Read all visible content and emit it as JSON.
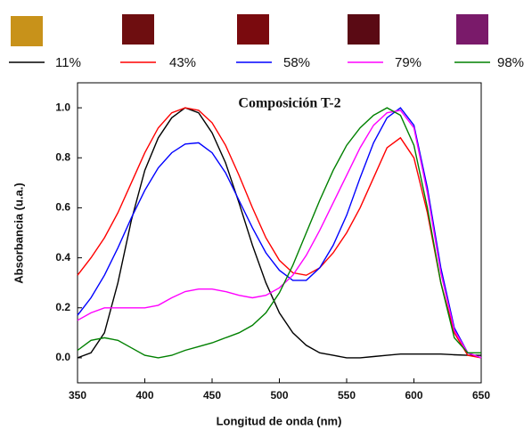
{
  "chart_data": {
    "type": "line",
    "title": "Composición T-2",
    "x_label": "Longitud de onda (nm)",
    "y_label": "Absorbancia (u.a.)",
    "x": [
      350,
      360,
      370,
      380,
      390,
      400,
      410,
      420,
      430,
      440,
      450,
      460,
      470,
      480,
      490,
      500,
      510,
      520,
      530,
      540,
      550,
      560,
      570,
      580,
      590,
      600,
      610,
      620,
      630,
      640,
      650
    ],
    "series": [
      {
        "name": "11%",
        "color": "#000000",
        "values": [
          0.0,
          0.02,
          0.1,
          0.3,
          0.55,
          0.75,
          0.88,
          0.96,
          1.0,
          0.98,
          0.9,
          0.78,
          0.62,
          0.45,
          0.3,
          0.18,
          0.1,
          0.05,
          0.02,
          0.01,
          0.0,
          0.0,
          0.005,
          0.01,
          0.015,
          0.015,
          0.015,
          0.015,
          0.012,
          0.01,
          0.01
        ]
      },
      {
        "name": "43%",
        "color": "#ff0000",
        "values": [
          0.33,
          0.4,
          0.48,
          0.58,
          0.7,
          0.82,
          0.92,
          0.98,
          1.0,
          0.99,
          0.94,
          0.85,
          0.73,
          0.6,
          0.48,
          0.39,
          0.34,
          0.33,
          0.36,
          0.42,
          0.5,
          0.6,
          0.72,
          0.84,
          0.88,
          0.8,
          0.58,
          0.3,
          0.1,
          0.01,
          0.0
        ]
      },
      {
        "name": "58%",
        "color": "#0000ff",
        "values": [
          0.17,
          0.24,
          0.33,
          0.44,
          0.56,
          0.67,
          0.76,
          0.82,
          0.855,
          0.86,
          0.82,
          0.74,
          0.63,
          0.52,
          0.42,
          0.35,
          0.31,
          0.31,
          0.36,
          0.45,
          0.57,
          0.72,
          0.86,
          0.96,
          1.0,
          0.93,
          0.68,
          0.36,
          0.12,
          0.02,
          0.0
        ]
      },
      {
        "name": "79%",
        "color": "#ff00ff",
        "values": [
          0.15,
          0.18,
          0.2,
          0.2,
          0.2,
          0.2,
          0.21,
          0.24,
          0.265,
          0.275,
          0.275,
          0.265,
          0.25,
          0.24,
          0.25,
          0.28,
          0.33,
          0.41,
          0.51,
          0.62,
          0.73,
          0.84,
          0.93,
          0.98,
          0.99,
          0.92,
          0.66,
          0.34,
          0.11,
          0.02,
          0.0
        ]
      },
      {
        "name": "98%",
        "color": "#008000",
        "values": [
          0.03,
          0.07,
          0.08,
          0.07,
          0.04,
          0.01,
          0.0,
          0.01,
          0.03,
          0.045,
          0.06,
          0.08,
          0.1,
          0.13,
          0.18,
          0.26,
          0.37,
          0.5,
          0.63,
          0.75,
          0.85,
          0.92,
          0.97,
          1.0,
          0.97,
          0.85,
          0.6,
          0.3,
          0.08,
          0.02,
          0.02
        ]
      }
    ],
    "xlim": [
      350,
      650
    ],
    "ylim": [
      -0.1,
      1.1
    ],
    "xticks": [
      350,
      400,
      450,
      500,
      550,
      600,
      650
    ],
    "yticks": [
      {
        "value": 0,
        "label": "0.0"
      },
      0.2,
      0.4,
      0.6,
      0.8,
      {
        "value": 1,
        "label": "1.0"
      }
    ]
  }
}
